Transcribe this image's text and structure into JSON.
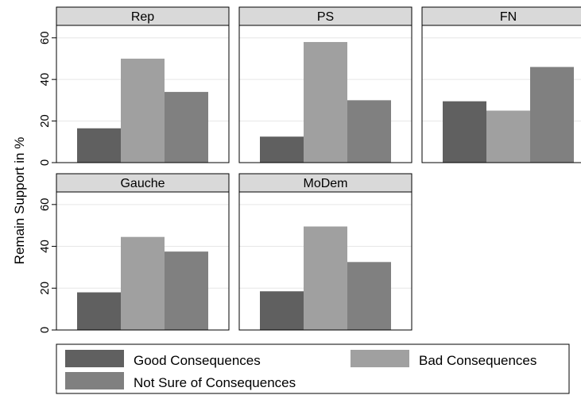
{
  "chart_data": {
    "type": "bar",
    "ylabel": "Remain Support in %",
    "ylim": [
      0,
      66
    ],
    "yticks": [
      0,
      20,
      40,
      60
    ],
    "grid": true,
    "legend_position": "bottom",
    "legend_labels": [
      "Good Consequences",
      "Bad Consequences",
      "Not Sure of Consequences"
    ],
    "series_colors": [
      "#606060",
      "#a0a0a0",
      "#808080"
    ],
    "panels": [
      {
        "name": "Rep",
        "values": [
          16.5,
          50,
          34
        ]
      },
      {
        "name": "PS",
        "values": [
          12.5,
          58,
          30
        ]
      },
      {
        "name": "FN",
        "values": [
          29.5,
          25,
          46
        ]
      },
      {
        "name": "Gauche",
        "values": [
          18,
          44.5,
          37.5
        ]
      },
      {
        "name": "MoDem",
        "values": [
          18.5,
          49.5,
          32.5
        ]
      }
    ]
  }
}
